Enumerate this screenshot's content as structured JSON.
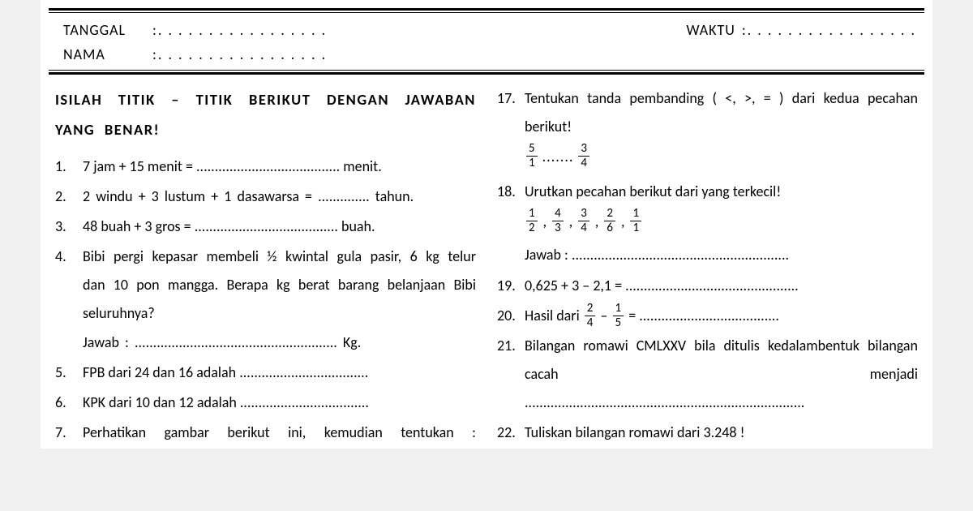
{
  "meta": {
    "tanggal_label": "TANGGAL",
    "nama_label": "NAMA",
    "waktu_label": "WAKTU",
    "colon": ":",
    "dots_short": ". . . . . . . . . . . . . . . . .",
    "dots_right": ". . . . . . . . . . . . . . . . ."
  },
  "instruction": "ISILAH TITIK – TITIK BERIKUT DENGAN JAWABAN YANG BENAR!",
  "left_questions": [
    {
      "n": "1.",
      "text": "7 jam + 15 menit = ....................................... menit."
    },
    {
      "n": "2.",
      "text": "2 windu  + 3 lustum  +  1 dasawarsa  =  .............. tahun."
    },
    {
      "n": "3.",
      "text": "48 buah + 3 gros  =  ....................................... buah."
    },
    {
      "n": "4.",
      "text": "Bibi pergi kepasar membeli ½ kwintal gula pasir, 6 kg telur dan 10 pon mangga. Berapa kg berat barang belanjaan Bibi seluruhnya?",
      "answer": "Jawab : ....................................................... Kg."
    },
    {
      "n": "5.",
      "text": "FPB dari 24 dan 16 adalah ..................................."
    },
    {
      "n": "6.",
      "text": "KPK dari 10 dan 12 adalah ..................................."
    },
    {
      "n": "7.",
      "text": "Perhatikan gambar berikut ini, kemudian tentukan :",
      "spread": true
    }
  ],
  "right_questions": {
    "q17": {
      "n": "17.",
      "text": "Tentukan tanda pembanding ( <, >, = ) dari kedua pecahan berikut!",
      "f1_n": "5",
      "f1_d": "1",
      "mid": ".......",
      "f2_n": "3",
      "f2_d": "4"
    },
    "q18": {
      "n": "18.",
      "text": "Urutkan pecahan berikut dari yang terkecil!",
      "fracs": [
        {
          "n": "1",
          "d": "2"
        },
        {
          "n": "4",
          "d": "3"
        },
        {
          "n": "3",
          "d": "4"
        },
        {
          "n": "2",
          "d": "6"
        },
        {
          "n": "1",
          "d": "1"
        }
      ],
      "answer": "Jawab : ..........................................................."
    },
    "q19": {
      "n": "19.",
      "text": "0,625 + 3 – 2,1 = ..............................................."
    },
    "q20": {
      "n": "20.",
      "pre": "Hasil dari ",
      "f1_n": "2",
      "f1_d": "4",
      "minus": " – ",
      "f2_n": "1",
      "f2_d": "5",
      "post": "  =  ......................................"
    },
    "q21": {
      "n": "21.",
      "text": "Bilangan romawi CMLXXV bila ditulis kedalambentuk bilangan cacah menjadi",
      "dots": "............................................................................"
    },
    "q22": {
      "n": "22.",
      "text": "Tuliskan bilangan romawi dari 3.248 !"
    }
  }
}
